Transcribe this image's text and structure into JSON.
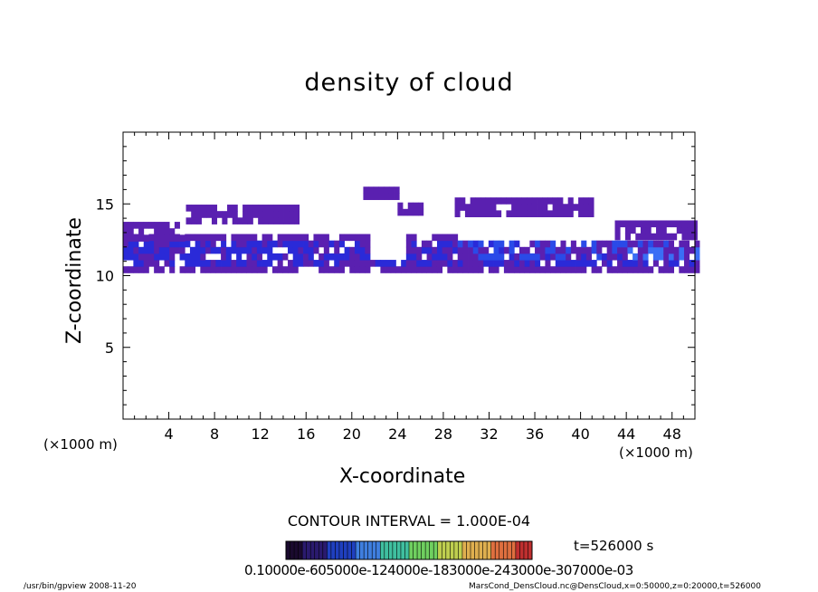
{
  "chart_data": {
    "type": "heatmap",
    "title": "density of cloud",
    "xlabel": "X-coordinate",
    "ylabel": "Z-coordinate",
    "x_unit_label": "(×1000 m)",
    "xlim": [
      0,
      50
    ],
    "ylim": [
      0,
      20
    ],
    "x_ticks": [
      "4",
      "8",
      "12",
      "16",
      "20",
      "24",
      "28",
      "32",
      "36",
      "40",
      "44",
      "48"
    ],
    "y_ticks": [
      "5",
      "10",
      "15"
    ],
    "contour_interval": "CONTOUR INTERVAL = 1.000E-04",
    "time_label": "t=526000 s",
    "colorbar_labels": "0.10000e-605000e-124000e-183000e-243000e-307000e-03",
    "colorbar_colors": [
      "#1a0a2e",
      "#2a1a6e",
      "#1f3fbf",
      "#3f7fdf",
      "#3fbf9f",
      "#6fcf5f",
      "#bfcf4f",
      "#dfaf4f",
      "#df6f3f",
      "#bf2f2f"
    ],
    "cloud_colors": [
      "#5a20b0",
      "#2a2ad8",
      "#2a4ae8",
      "#3a6ef5"
    ],
    "cloud_layers": [
      {
        "x": [
          0,
          24,
          50
        ],
        "zmin": 10.2,
        "zmax": 12.6
      },
      {
        "x": [
          0,
          5
        ],
        "zmin": 12.4,
        "zmax": 13.7
      },
      {
        "x": [
          5.5,
          15
        ],
        "zmin": 13.6,
        "zmax": 14.8
      },
      {
        "x": [
          21,
          24
        ],
        "zmin": 15.3,
        "zmax": 15.8
      },
      {
        "x": [
          24,
          26
        ],
        "zmin": 14.2,
        "zmax": 14.7
      },
      {
        "x": [
          29,
          41
        ],
        "zmin": 14.1,
        "zmax": 15.0
      },
      {
        "x": [
          43,
          50
        ],
        "zmin": 12.5,
        "zmax": 13.8
      }
    ]
  },
  "footer": {
    "left": "/usr/bin/gpview   2008-11-20",
    "right": "MarsCond_DensCloud.nc@DensCloud,x=0:50000,z=0:20000,t=526000"
  }
}
